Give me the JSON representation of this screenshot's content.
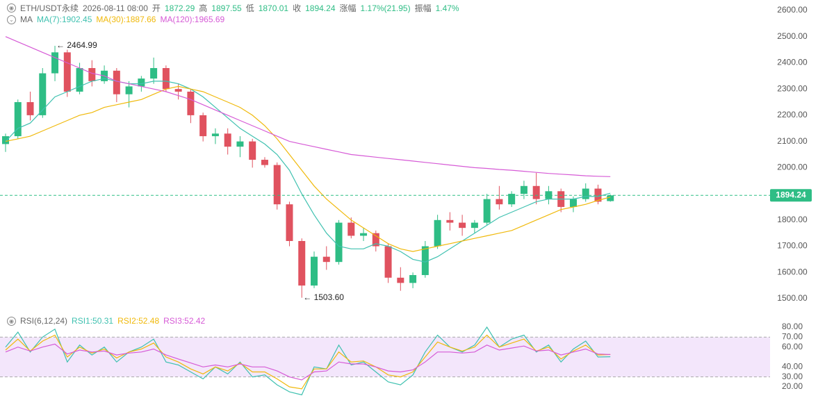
{
  "header": {
    "symbol": "ETH/USDT永续",
    "time": "2026-08-11 08:00",
    "fields": [
      {
        "label": "开",
        "value": "1872.29"
      },
      {
        "label": "高",
        "value": "1897.55"
      },
      {
        "label": "低",
        "value": "1870.01"
      },
      {
        "label": "收",
        "value": "1894.24"
      },
      {
        "label": "涨幅",
        "value": "1.17%(21.95)"
      },
      {
        "label": "振幅",
        "value": "1.47%"
      }
    ]
  },
  "chart_data": [
    {
      "type": "candlestick",
      "title": "MA",
      "up_color": "#2ebd85",
      "down_color": "#e0525f",
      "candles": [
        [
          2090,
          2130,
          2060,
          2120
        ],
        [
          2120,
          2260,
          2110,
          2250
        ],
        [
          2250,
          2290,
          2180,
          2200
        ],
        [
          2200,
          2380,
          2190,
          2360
        ],
        [
          2360,
          2464.99,
          2330,
          2440
        ],
        [
          2440,
          2450,
          2270,
          2290
        ],
        [
          2290,
          2400,
          2280,
          2380
        ],
        [
          2380,
          2410,
          2310,
          2330
        ],
        [
          2330,
          2390,
          2320,
          2370
        ],
        [
          2370,
          2380,
          2250,
          2280
        ],
        [
          2280,
          2330,
          2230,
          2310
        ],
        [
          2310,
          2350,
          2290,
          2340
        ],
        [
          2340,
          2420,
          2320,
          2380
        ],
        [
          2380,
          2390,
          2290,
          2300
        ],
        [
          2300,
          2320,
          2260,
          2290
        ],
        [
          2290,
          2300,
          2170,
          2200
        ],
        [
          2200,
          2210,
          2100,
          2120
        ],
        [
          2120,
          2150,
          2090,
          2130
        ],
        [
          2130,
          2150,
          2050,
          2080
        ],
        [
          2080,
          2120,
          2040,
          2100
        ],
        [
          2100,
          2110,
          2000,
          2030
        ],
        [
          2030,
          2040,
          2000,
          2010
        ],
        [
          2010,
          2020,
          1840,
          1860
        ],
        [
          1860,
          1870,
          1700,
          1720
        ],
        [
          1720,
          1730,
          1503.6,
          1550
        ],
        [
          1550,
          1680,
          1540,
          1660
        ],
        [
          1660,
          1700,
          1610,
          1640
        ],
        [
          1640,
          1800,
          1630,
          1790
        ],
        [
          1790,
          1810,
          1730,
          1740
        ],
        [
          1740,
          1770,
          1720,
          1750
        ],
        [
          1750,
          1760,
          1680,
          1700
        ],
        [
          1700,
          1710,
          1560,
          1580
        ],
        [
          1580,
          1620,
          1530,
          1560
        ],
        [
          1560,
          1600,
          1540,
          1590
        ],
        [
          1590,
          1720,
          1580,
          1700
        ],
        [
          1700,
          1820,
          1690,
          1800
        ],
        [
          1800,
          1830,
          1760,
          1790
        ],
        [
          1790,
          1820,
          1740,
          1770
        ],
        [
          1770,
          1800,
          1750,
          1790
        ],
        [
          1790,
          1900,
          1780,
          1880
        ],
        [
          1880,
          1930,
          1840,
          1860
        ],
        [
          1860,
          1910,
          1850,
          1900
        ],
        [
          1900,
          1950,
          1880,
          1930
        ],
        [
          1930,
          1980,
          1860,
          1880
        ],
        [
          1880,
          1930,
          1860,
          1910
        ],
        [
          1910,
          1920,
          1830,
          1850
        ],
        [
          1850,
          1890,
          1830,
          1880
        ],
        [
          1880,
          1940,
          1870,
          1920
        ],
        [
          1920,
          1935,
          1860,
          1870
        ],
        [
          1872.29,
          1897.55,
          1870.01,
          1894.24
        ]
      ],
      "series": [
        {
          "name": "MA(7):1902.45",
          "color": "#3fc1b0",
          "values": [
            2100,
            2150,
            2170,
            2220,
            2270,
            2290,
            2310,
            2330,
            2340,
            2330,
            2320,
            2320,
            2330,
            2330,
            2320,
            2300,
            2270,
            2230,
            2190,
            2150,
            2120,
            2090,
            2050,
            1990,
            1900,
            1820,
            1750,
            1700,
            1690,
            1690,
            1710,
            1700,
            1680,
            1650,
            1640,
            1660,
            1690,
            1720,
            1750,
            1780,
            1810,
            1830,
            1850,
            1870,
            1880,
            1880,
            1880,
            1890,
            1890,
            1902.45
          ]
        },
        {
          "name": "MA(30):1887.66",
          "color": "#f0b90b",
          "values": [
            2100,
            2110,
            2120,
            2140,
            2160,
            2180,
            2200,
            2210,
            2230,
            2240,
            2250,
            2260,
            2280,
            2300,
            2310,
            2300,
            2290,
            2270,
            2250,
            2230,
            2200,
            2160,
            2110,
            2050,
            1990,
            1930,
            1880,
            1840,
            1800,
            1770,
            1740,
            1710,
            1690,
            1680,
            1690,
            1700,
            1710,
            1720,
            1730,
            1740,
            1750,
            1760,
            1780,
            1800,
            1820,
            1840,
            1850,
            1860,
            1875,
            1887.66
          ]
        },
        {
          "name": "MA(120):1965.69",
          "color": "#d65ad6",
          "values": [
            2500,
            2480,
            2460,
            2440,
            2420,
            2400,
            2380,
            2360,
            2350,
            2330,
            2320,
            2310,
            2300,
            2290,
            2275,
            2260,
            2240,
            2220,
            2200,
            2180,
            2160,
            2140,
            2120,
            2100,
            2090,
            2080,
            2070,
            2060,
            2050,
            2045,
            2040,
            2035,
            2030,
            2025,
            2020,
            2015,
            2010,
            2005,
            2000,
            1997,
            1993,
            1990,
            1986,
            1982,
            1978,
            1975,
            1972,
            1969,
            1967,
            1965.69
          ]
        }
      ],
      "annotations": [
        {
          "text": "← 2464.99",
          "candle": 4,
          "value": 2464.99
        },
        {
          "text": "← 1503.60",
          "candle": 24,
          "value": 1503.6
        }
      ],
      "last_price": {
        "value": 1894.24,
        "label": "1894.24"
      },
      "last_color": "#2ebd85",
      "ylim": [
        1500,
        2600
      ],
      "yticks": [
        {
          "value": 2600,
          "label": "2600.00"
        },
        {
          "value": 2500,
          "label": "2500.00"
        },
        {
          "value": 2400,
          "label": "2400.00"
        },
        {
          "value": 2300,
          "label": "2300.00"
        },
        {
          "value": 2200,
          "label": "2200.00"
        },
        {
          "value": 2100,
          "label": "2100.00"
        },
        {
          "value": 2000,
          "label": "2000.00"
        },
        {
          "value": 1900,
          "label": "1900.00"
        },
        {
          "value": 1800,
          "label": "1800.00"
        },
        {
          "value": 1700,
          "label": "1700.00"
        },
        {
          "value": 1600,
          "label": "1600.00"
        },
        {
          "value": 1500,
          "label": "1500.00"
        }
      ]
    },
    {
      "type": "line",
      "title": "RSI(6,12,24)",
      "band": [
        30,
        70
      ],
      "band_color": "#f3e6fb",
      "series": [
        {
          "name": "RSI1:50.31",
          "color": "#3fc1b0",
          "values": [
            60,
            75,
            55,
            70,
            78,
            45,
            62,
            52,
            60,
            45,
            55,
            60,
            68,
            45,
            42,
            35,
            28,
            40,
            33,
            45,
            30,
            32,
            22,
            15,
            12,
            40,
            38,
            62,
            42,
            45,
            35,
            25,
            22,
            32,
            55,
            72,
            60,
            55,
            62,
            80,
            60,
            68,
            72,
            55,
            62,
            45,
            58,
            66,
            50,
            50.31
          ]
        },
        {
          "name": "RSI2:52.48",
          "color": "#f0b90b",
          "values": [
            57,
            68,
            56,
            66,
            72,
            50,
            60,
            54,
            58,
            49,
            55,
            58,
            64,
            50,
            45,
            38,
            33,
            40,
            36,
            44,
            35,
            35,
            28,
            20,
            18,
            38,
            38,
            55,
            45,
            46,
            40,
            32,
            30,
            35,
            50,
            65,
            60,
            56,
            60,
            72,
            60,
            64,
            68,
            56,
            60,
            48,
            56,
            62,
            52,
            52.48
          ]
        },
        {
          "name": "RSI3:52.42",
          "color": "#d65ad6",
          "values": [
            55,
            60,
            56,
            60,
            63,
            53,
            57,
            55,
            56,
            52,
            54,
            55,
            58,
            52,
            48,
            44,
            40,
            42,
            40,
            43,
            40,
            40,
            36,
            30,
            27,
            35,
            36,
            45,
            43,
            43,
            40,
            36,
            35,
            37,
            45,
            55,
            55,
            54,
            55,
            62,
            57,
            59,
            61,
            56,
            57,
            52,
            55,
            58,
            53,
            52.42
          ]
        }
      ],
      "ylim": [
        20,
        80
      ],
      "yticks": [
        {
          "value": 80,
          "label": "80.00"
        },
        {
          "value": 70,
          "label": "70.00"
        },
        {
          "value": 60,
          "label": "60.00"
        },
        {
          "value": 40,
          "label": "40.00"
        },
        {
          "value": 30,
          "label": "30.00"
        },
        {
          "value": 20,
          "label": "20.00"
        }
      ]
    }
  ]
}
